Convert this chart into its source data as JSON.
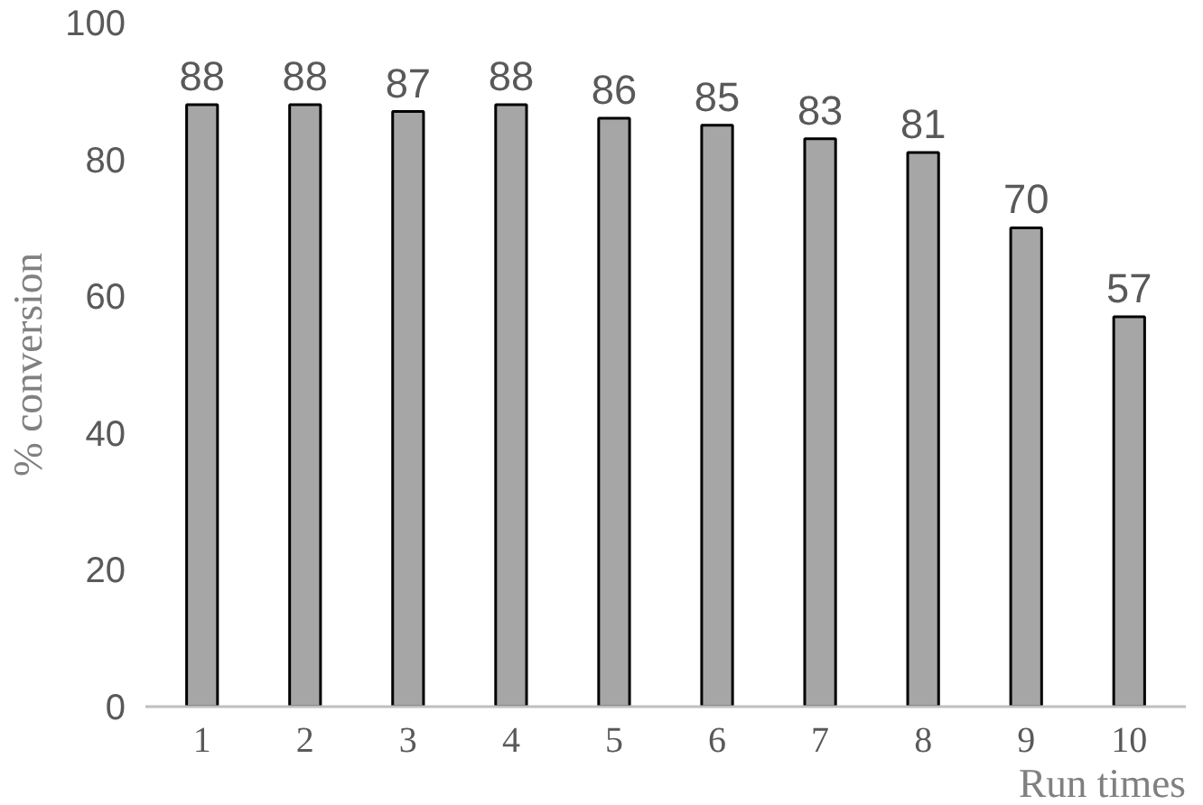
{
  "chart_data": {
    "type": "bar",
    "xlabel": "Run times",
    "ylabel": "% conversion",
    "categories": [
      "1",
      "2",
      "3",
      "4",
      "5",
      "6",
      "7",
      "8",
      "9",
      "10"
    ],
    "values": [
      88,
      88,
      87,
      88,
      86,
      85,
      83,
      81,
      70,
      57
    ],
    "color": "#a6a6a6",
    "ylim": [
      0,
      100
    ],
    "yticks": [
      0,
      20,
      40,
      60,
      80,
      100
    ],
    "grid": false,
    "data_labels": true
  }
}
